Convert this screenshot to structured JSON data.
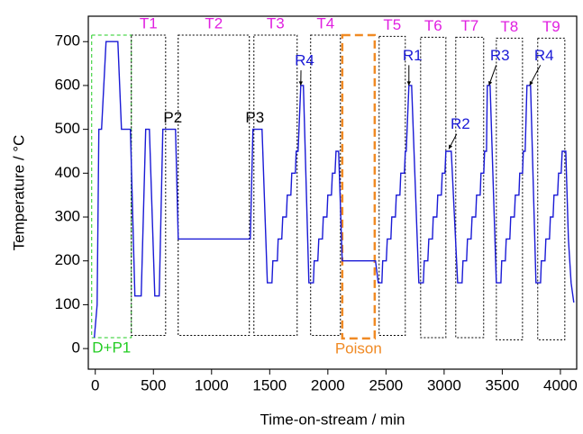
{
  "chart_data": {
    "type": "line",
    "x_label": "Time-on-stream / min",
    "y_label": "Temperature / °C",
    "color": "#1a1ad6",
    "x": [
      -8,
      16,
      31,
      54,
      93,
      194,
      225,
      302,
      341,
      395,
      434,
      465,
      512,
      550,
      581,
      690,
      713,
      1333,
      1356,
      1434,
      1480,
      1519,
      1527,
      1566,
      1573,
      1604,
      1612,
      1643,
      1651,
      1682,
      1690,
      1721,
      1728,
      1744,
      1767,
      1790,
      1837,
      1876,
      1883,
      1914,
      1922,
      1953,
      1961,
      1992,
      2000,
      2031,
      2039,
      2062,
      2070,
      2093,
      2124,
      2410,
      2434,
      2465,
      2472,
      2503,
      2511,
      2542,
      2550,
      2581,
      2589,
      2620,
      2627,
      2658,
      2666,
      2674,
      2697,
      2720,
      2782,
      2821,
      2829,
      2860,
      2868,
      2899,
      2906,
      2937,
      2945,
      2976,
      2984,
      3007,
      3015,
      3061,
      3116,
      3154,
      3162,
      3193,
      3201,
      3232,
      3240,
      3271,
      3279,
      3310,
      3317,
      3341,
      3348,
      3364,
      3371,
      3395,
      3449,
      3488,
      3495,
      3526,
      3534,
      3565,
      3573,
      3604,
      3612,
      3643,
      3650,
      3674,
      3681,
      3697,
      3712,
      3743,
      3790,
      3829,
      3836,
      3867,
      3875,
      3906,
      3914,
      3937,
      3945,
      3976,
      3984,
      4007,
      4015,
      4046,
      4069,
      4092,
      4115
    ],
    "values": [
      25,
      100,
      500,
      500,
      700,
      700,
      500,
      500,
      120,
      120,
      500,
      500,
      120,
      120,
      500,
      500,
      250,
      250,
      500,
      500,
      150,
      150,
      200,
      200,
      250,
      250,
      300,
      300,
      350,
      350,
      400,
      400,
      450,
      450,
      600,
      600,
      150,
      150,
      200,
      200,
      250,
      250,
      300,
      300,
      350,
      350,
      400,
      400,
      450,
      450,
      200,
      200,
      150,
      150,
      200,
      200,
      250,
      250,
      300,
      300,
      350,
      350,
      400,
      400,
      450,
      450,
      600,
      600,
      150,
      150,
      200,
      200,
      250,
      250,
      300,
      300,
      350,
      350,
      400,
      400,
      450,
      450,
      150,
      150,
      200,
      200,
      250,
      250,
      300,
      300,
      350,
      350,
      400,
      400,
      450,
      450,
      600,
      600,
      150,
      150,
      200,
      200,
      250,
      250,
      300,
      300,
      350,
      350,
      400,
      400,
      450,
      450,
      600,
      600,
      150,
      150,
      200,
      200,
      250,
      250,
      300,
      300,
      350,
      350,
      400,
      400,
      450,
      450,
      250,
      150,
      105
    ],
    "xlim": [
      -60,
      4140
    ],
    "ylim": [
      -47,
      758
    ],
    "xticks": [
      0,
      500,
      1000,
      1500,
      2000,
      2500,
      3000,
      3500,
      4000
    ],
    "yticks": [
      0,
      100,
      200,
      300,
      400,
      500,
      600,
      700
    ],
    "regions": [
      {
        "label": "D+P1",
        "x": [
          -31,
          310
        ],
        "y": [
          25,
          715
        ],
        "color": "#22cc22",
        "style": "dashed",
        "label_position": "bottom"
      },
      {
        "label": "T1",
        "x": [
          310,
          605
        ],
        "y": [
          30,
          715
        ],
        "color": "#000000",
        "style": "dotted",
        "label_position": "top",
        "label_color": "#e020e0"
      },
      {
        "label": "T2",
        "x": [
          713,
          1325
        ],
        "y": [
          30,
          715
        ],
        "color": "#000000",
        "style": "dotted",
        "label_position": "top",
        "label_color": "#e020e0"
      },
      {
        "label": "T3",
        "x": [
          1364,
          1736
        ],
        "y": [
          30,
          715
        ],
        "color": "#000000",
        "style": "dotted",
        "label_position": "top",
        "label_color": "#e020e0"
      },
      {
        "label": "T4",
        "x": [
          1852,
          2108
        ],
        "y": [
          30,
          715
        ],
        "color": "#000000",
        "style": "dotted",
        "label_position": "top",
        "label_color": "#e020e0"
      },
      {
        "label": "Poison",
        "x": [
          2124,
          2403
        ],
        "y": [
          23,
          715
        ],
        "color": "#f08a24",
        "style": "bold-dashed",
        "label_position": "bottom"
      },
      {
        "label": "T5",
        "x": [
          2441,
          2666
        ],
        "y": [
          30,
          712
        ],
        "color": "#000000",
        "style": "dotted",
        "label_position": "top",
        "label_color": "#e020e0"
      },
      {
        "label": "T6",
        "x": [
          2798,
          3015
        ],
        "y": [
          25,
          710
        ],
        "color": "#000000",
        "style": "dotted",
        "label_position": "top",
        "label_color": "#e020e0"
      },
      {
        "label": "T7",
        "x": [
          3100,
          3340
        ],
        "y": [
          25,
          710
        ],
        "color": "#000000",
        "style": "dotted",
        "label_position": "top",
        "label_color": "#e020e0"
      },
      {
        "label": "T8",
        "x": [
          3449,
          3674
        ],
        "y": [
          20,
          708
        ],
        "color": "#000000",
        "style": "dotted",
        "label_position": "top",
        "label_color": "#e020e0"
      },
      {
        "label": "T9",
        "x": [
          3805,
          4038
        ],
        "y": [
          20,
          708
        ],
        "color": "#000000",
        "style": "dotted",
        "label_position": "top",
        "label_color": "#e020e0"
      }
    ],
    "annotations": [
      {
        "text": "P2",
        "x": 667,
        "y": 525,
        "color": "#000000"
      },
      {
        "text": "P3",
        "x": 1372,
        "y": 525,
        "color": "#000000"
      },
      {
        "text": "R4",
        "x": 1800,
        "y": 655,
        "color": "#1a1ad6",
        "arrow_to": [
          1767,
          600
        ]
      },
      {
        "text": "R1",
        "x": 2728,
        "y": 667,
        "color": "#1a1ad6",
        "arrow_to": [
          2697,
          600
        ]
      },
      {
        "text": "R2",
        "x": 3139,
        "y": 510,
        "color": "#1a1ad6",
        "arrow_to": [
          3040,
          455
        ]
      },
      {
        "text": "R3",
        "x": 3479,
        "y": 667,
        "color": "#1a1ad6",
        "arrow_to": [
          3385,
          600
        ]
      },
      {
        "text": "R4",
        "x": 3859,
        "y": 667,
        "color": "#1a1ad6",
        "arrow_to": [
          3735,
          600
        ]
      }
    ]
  }
}
